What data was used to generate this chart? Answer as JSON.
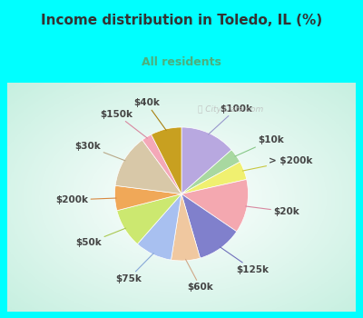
{
  "title": "Income distribution in Toledo, IL (%)",
  "subtitle": "All residents",
  "title_color": "#333333",
  "subtitle_color": "#4caf7d",
  "bg_color_outer": "#00ffff",
  "bg_color_chart": "#d8f0e8",
  "watermark": "ⓘ City-Data.com",
  "labels": [
    "$100k",
    "$10k",
    "> $200k",
    "$20k",
    "$125k",
    "$60k",
    "$75k",
    "$50k",
    "$200k",
    "$30k",
    "$150k",
    "$40k"
  ],
  "sizes": [
    13.5,
    3.5,
    4.5,
    13.0,
    11.0,
    7.0,
    9.0,
    9.5,
    6.0,
    13.0,
    2.5,
    7.5
  ],
  "colors": [
    "#b8a8e0",
    "#a8d8a0",
    "#f0f070",
    "#f4a8b0",
    "#8080cc",
    "#f0c8a0",
    "#a8c0f0",
    "#cce870",
    "#f0a858",
    "#d8c8a8",
    "#f4a8b8",
    "#c8a020"
  ],
  "startangle": 90,
  "title_fontsize": 11,
  "subtitle_fontsize": 9,
  "label_fontsize": 7.5,
  "label_colors": {
    "$100k": "#555555",
    "$10k": "#555555",
    "> $200k": "#555555",
    "$20k": "#555555",
    "$125k": "#555555",
    "$60k": "#555555",
    "$75k": "#555555",
    "$50k": "#555555",
    "$200k": "#555555",
    "$30k": "#555555",
    "$150k": "#555555",
    "$40k": "#555555"
  },
  "line_colors": [
    "#9898cc",
    "#88c888",
    "#c8c840",
    "#d888a0",
    "#7070bb",
    "#d0a888",
    "#88a8d8",
    "#aac850",
    "#d88840",
    "#b8a888",
    "#d888a0",
    "#a88010"
  ]
}
